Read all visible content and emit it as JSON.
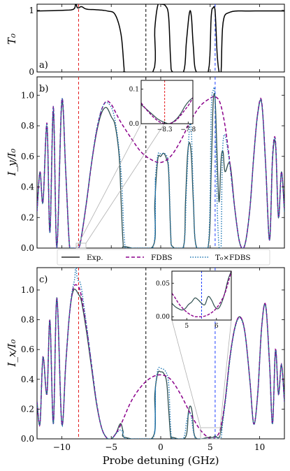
{
  "chart_data": [
    {
      "panel": "a)",
      "type": "line",
      "ylabel": "T₀",
      "xlim": [
        -12.5,
        12.5
      ],
      "ylim": [
        0,
        1.1
      ],
      "yticks": [
        "0",
        "1"
      ],
      "series": [
        {
          "name": "Exp.",
          "color": "#000000",
          "x": [
            -12.5,
            -10,
            -8.8,
            -8.6,
            -8.45,
            -8.3,
            -8.0,
            -7.5,
            -6.5,
            -5.4,
            -4.6,
            -4.0,
            -3.7,
            -3.6,
            -0.8,
            -0.6,
            -0.3,
            0.0,
            0.5,
            0.8,
            1.0,
            1.2,
            2.3,
            2.6,
            2.9,
            3.1,
            3.3,
            3.6,
            4.8,
            5.1,
            5.3,
            5.5,
            5.7,
            5.9,
            6.1,
            6.3,
            7,
            9,
            12.5
          ],
          "y": [
            0.99,
            1.0,
            1.02,
            1.12,
            1.05,
            1.04,
            1.06,
            1.02,
            1.01,
            0.99,
            0.93,
            0.6,
            0.05,
            0.0,
            0.0,
            0.7,
            1.08,
            1.1,
            1.07,
            0.9,
            0.2,
            0.0,
            0.0,
            0.5,
            0.96,
            0.9,
            0.4,
            0.0,
            0.0,
            0.9,
            1.04,
            0.98,
            0.3,
            0.0,
            0.0,
            0.8,
            0.97,
            0.99,
            0.99
          ]
        }
      ],
      "vlines": [
        {
          "x": -8.3,
          "color": "#e41a1c",
          "style": "dashed"
        },
        {
          "x": -1.5,
          "color": "#000000",
          "style": "dashed"
        },
        {
          "x": 5.5,
          "color": "#1f3fff",
          "style": "dashed"
        }
      ]
    },
    {
      "panel": "b)",
      "type": "line",
      "ylabel": "I_y/I₀",
      "xlim": [
        -12.5,
        12.5
      ],
      "ylim": [
        0,
        1.12
      ],
      "yticks": [
        "0.0",
        "0.2",
        "0.4",
        "0.6",
        "0.8",
        "1.0"
      ],
      "fdbs": {
        "x": [
          -12.5,
          -12.2,
          -11.9,
          -11.5,
          -11.2,
          -10.85,
          -10.5,
          -10.0,
          -9.6,
          -9.2,
          -8.8,
          -8.3,
          -8.0,
          -7.5,
          -7.0,
          -6.5,
          -6.0,
          -5.5,
          -5.0,
          -4.5,
          -4.0,
          -3.0,
          -2.0,
          -1.0,
          0.0,
          1.0,
          2.0,
          3.0,
          4.0,
          5.0,
          5.5,
          6.0,
          6.5,
          7.0,
          7.5,
          8.0,
          8.5,
          9.0,
          9.4,
          9.8,
          10.2,
          10.6,
          11.0,
          11.3,
          11.6,
          11.9,
          12.2,
          12.5
        ],
        "y": [
          0.24,
          0.5,
          0.3,
          0.82,
          0.1,
          0.93,
          0.0,
          0.97,
          0.5,
          0.0,
          0.0,
          0.0,
          0.08,
          0.3,
          0.55,
          0.76,
          0.9,
          0.96,
          0.94,
          0.88,
          0.82,
          0.72,
          0.63,
          0.58,
          0.56,
          0.6,
          0.7,
          0.83,
          0.93,
          0.98,
          0.99,
          0.95,
          0.8,
          0.55,
          0.25,
          0.03,
          0.02,
          0.25,
          0.6,
          0.88,
          0.96,
          0.55,
          0.05,
          0.6,
          0.7,
          0.2,
          0.5,
          0.24
        ]
      },
      "exp": {
        "x": [
          -12.5,
          -12.2,
          -11.9,
          -11.5,
          -11.2,
          -10.85,
          -10.5,
          -10.0,
          -9.6,
          -9.2,
          -8.8,
          -8.3,
          -8.0,
          -7.5,
          -7.0,
          -6.5,
          -6.0,
          -5.5,
          -5.0,
          -4.6,
          -4.2,
          -4.0,
          -3.8,
          -3.6,
          -0.8,
          -0.6,
          -0.3,
          0.0,
          0.3,
          0.6,
          0.8,
          1.0,
          1.2,
          2.3,
          2.5,
          2.7,
          2.9,
          3.1,
          3.3,
          3.6,
          4.8,
          5.1,
          5.3,
          5.5,
          5.7,
          5.9,
          6.1,
          6.3,
          6.5,
          7.0,
          7.5,
          8.0,
          8.5,
          9.0,
          9.4,
          9.8,
          10.2,
          10.6,
          11.0,
          11.3,
          11.6,
          11.9,
          12.2,
          12.5
        ],
        "y": [
          0.24,
          0.5,
          0.3,
          0.8,
          0.1,
          0.9,
          0.0,
          0.95,
          0.5,
          0.0,
          0.0,
          0.0,
          0.08,
          0.3,
          0.55,
          0.75,
          0.88,
          0.92,
          0.86,
          0.8,
          0.6,
          0.3,
          0.03,
          0.01,
          0.01,
          0.3,
          0.58,
          0.6,
          0.62,
          0.58,
          0.5,
          0.1,
          0.01,
          0.01,
          0.3,
          0.6,
          0.69,
          0.6,
          0.3,
          0.01,
          0.01,
          0.5,
          0.95,
          0.97,
          0.6,
          0.3,
          0.58,
          0.63,
          0.5,
          0.55,
          0.25,
          0.03,
          0.02,
          0.25,
          0.6,
          0.88,
          0.95,
          0.55,
          0.05,
          0.58,
          0.68,
          0.2,
          0.5,
          0.24
        ]
      },
      "inset": {
        "xlim": [
          -8.8,
          -7.7
        ],
        "ylim": [
          0,
          0.125
        ],
        "xticks": [
          "−8.3",
          "−7.8"
        ],
        "yticks": [
          "0.0",
          "0.1"
        ],
        "exp_y": [
          0.055,
          0.045,
          0.035,
          0.025,
          0.015,
          0.008,
          0.003,
          0.0,
          0.005,
          0.015,
          0.03,
          0.05,
          0.065,
          0.075
        ],
        "fdbs_y": [
          0.06,
          0.045,
          0.032,
          0.02,
          0.01,
          0.003,
          0.0,
          0.0,
          0.004,
          0.012,
          0.025,
          0.04,
          0.055,
          0.075
        ]
      }
    },
    {
      "panel": "c)",
      "type": "line",
      "ylabel": "I_x/I₀",
      "xlabel": "Probe detuning (GHz)",
      "xlim": [
        -12.5,
        12.5
      ],
      "ylim": [
        0,
        1.15
      ],
      "xticks": [
        "−10",
        "−5",
        "0",
        "5",
        "10"
      ],
      "yticks": [
        "0.0",
        "0.2",
        "0.4",
        "0.6",
        "0.8",
        "1.0"
      ],
      "fdbs": {
        "x": [
          -12.5,
          -12.2,
          -11.9,
          -11.5,
          -11.2,
          -10.85,
          -10.5,
          -10.0,
          -9.6,
          -9.2,
          -8.8,
          -8.3,
          -8.0,
          -7.5,
          -7.0,
          -6.5,
          -6.0,
          -5.5,
          -5.0,
          -4.5,
          -4.0,
          -3.0,
          -2.0,
          -1.0,
          0.0,
          1.0,
          2.0,
          3.0,
          4.0,
          5.0,
          5.5,
          6.0,
          6.5,
          7.0,
          7.5,
          8.0,
          8.5,
          9.0,
          9.4,
          9.8,
          10.2,
          10.6,
          11.0,
          11.3,
          11.6,
          11.9,
          12.2,
          12.5
        ],
        "y": [
          0.25,
          0.1,
          0.55,
          0.3,
          0.8,
          0.1,
          0.95,
          0.1,
          0.5,
          0.85,
          1.02,
          1.02,
          0.95,
          0.75,
          0.5,
          0.25,
          0.08,
          0.01,
          0.0,
          0.04,
          0.1,
          0.25,
          0.35,
          0.41,
          0.43,
          0.4,
          0.3,
          0.17,
          0.06,
          0.0,
          0.01,
          0.06,
          0.25,
          0.55,
          0.75,
          0.82,
          0.72,
          0.4,
          0.1,
          0.3,
          0.75,
          0.9,
          0.5,
          0.1,
          0.6,
          0.3,
          0.5,
          0.25
        ]
      },
      "exp": {
        "x": [
          -12.5,
          -12.2,
          -11.9,
          -11.5,
          -11.2,
          -10.85,
          -10.5,
          -10.0,
          -9.6,
          -9.2,
          -8.8,
          -8.3,
          -8.0,
          -7.5,
          -7.0,
          -6.5,
          -6.0,
          -5.5,
          -5.0,
          -4.5,
          -4.2,
          -4.0,
          -3.8,
          -3.6,
          -0.8,
          -0.6,
          -0.3,
          0.0,
          0.3,
          0.6,
          0.8,
          1.0,
          1.2,
          2.5,
          2.8,
          3.0,
          3.2,
          3.5,
          4.8,
          5.1,
          5.3,
          5.5,
          5.7,
          5.9,
          6.1,
          6.5,
          7.0,
          7.5,
          8.0,
          8.5,
          9.0,
          9.4,
          9.8,
          10.2,
          10.6,
          11.0,
          11.3,
          11.6,
          11.9,
          12.2,
          12.5
        ],
        "y": [
          0.25,
          0.1,
          0.55,
          0.3,
          0.8,
          0.1,
          0.95,
          0.1,
          0.5,
          0.85,
          1.0,
          0.97,
          0.92,
          0.72,
          0.48,
          0.24,
          0.08,
          0.01,
          0.0,
          0.04,
          0.09,
          0.1,
          0.05,
          0.01,
          0.01,
          0.3,
          0.44,
          0.45,
          0.44,
          0.38,
          0.2,
          0.02,
          0.01,
          0.01,
          0.18,
          0.22,
          0.17,
          0.01,
          0.01,
          0.01,
          0.01,
          0.02,
          0.01,
          0.01,
          0.06,
          0.25,
          0.55,
          0.75,
          0.82,
          0.72,
          0.4,
          0.1,
          0.3,
          0.75,
          0.9,
          0.5,
          0.1,
          0.6,
          0.3,
          0.5,
          0.25
        ]
      },
      "inset": {
        "xlim": [
          4.5,
          6.5
        ],
        "ylim": [
          -0.005,
          0.068
        ],
        "xticks": [
          "5",
          "6"
        ],
        "yticks": [
          "0.00",
          "0.05"
        ],
        "exp_y": [
          0.02,
          0.015,
          0.012,
          0.01,
          0.012,
          0.018,
          0.022,
          0.028,
          0.025,
          0.02,
          0.018,
          0.03,
          0.025,
          0.015,
          0.012,
          0.02,
          0.035,
          0.055,
          0.068
        ],
        "fdbs_y": [
          0.035,
          0.028,
          0.02,
          0.014,
          0.009,
          0.005,
          0.002,
          0.0,
          0.0,
          0.0,
          0.001,
          0.003,
          0.006,
          0.01,
          0.016,
          0.024,
          0.034,
          0.05,
          0.068
        ]
      }
    }
  ],
  "legend": {
    "exp": "Exp.",
    "fdbs": "FDBS",
    "prod": "T₀×FDBS"
  }
}
